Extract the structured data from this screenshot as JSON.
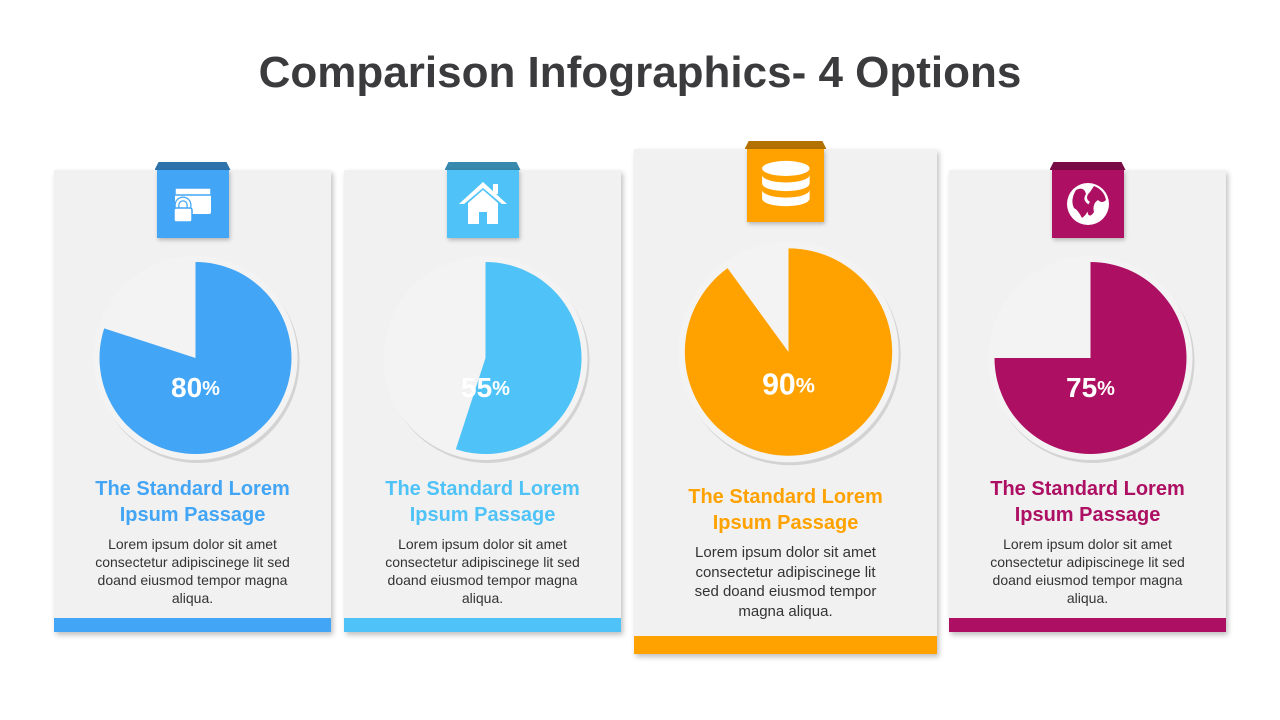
{
  "title": "Comparison Infographics- 4 Options",
  "cards": [
    {
      "value": 80,
      "unit": "%",
      "color": "#42a5f5",
      "heading": "The Standard Lorem Ipsum Passage",
      "text": "Lorem ipsum dolor sit amet consectetur adipiscinege lit sed doand eiusmod tempor magna aliqua."
    },
    {
      "value": 55,
      "unit": "%",
      "color": "#4fc3f7",
      "heading": "The Standard Lorem Ipsum Passage",
      "text": "Lorem ipsum dolor sit amet consectetur adipiscinege lit sed doand eiusmod tempor magna aliqua."
    },
    {
      "value": 90,
      "unit": "%",
      "color": "#ffa200",
      "heading": "The Standard Lorem Ipsum Passage",
      "text": "Lorem ipsum dolor sit amet consectetur adipiscinege lit sed doand eiusmod tempor magna aliqua."
    },
    {
      "value": 75,
      "unit": "%",
      "color": "#ad1063",
      "heading": "The Standard Lorem Ipsum Passage",
      "text": "Lorem ipsum dolor sit amet consectetur adipiscinege lit sed doand eiusmod tempor magna aliqua."
    }
  ]
}
